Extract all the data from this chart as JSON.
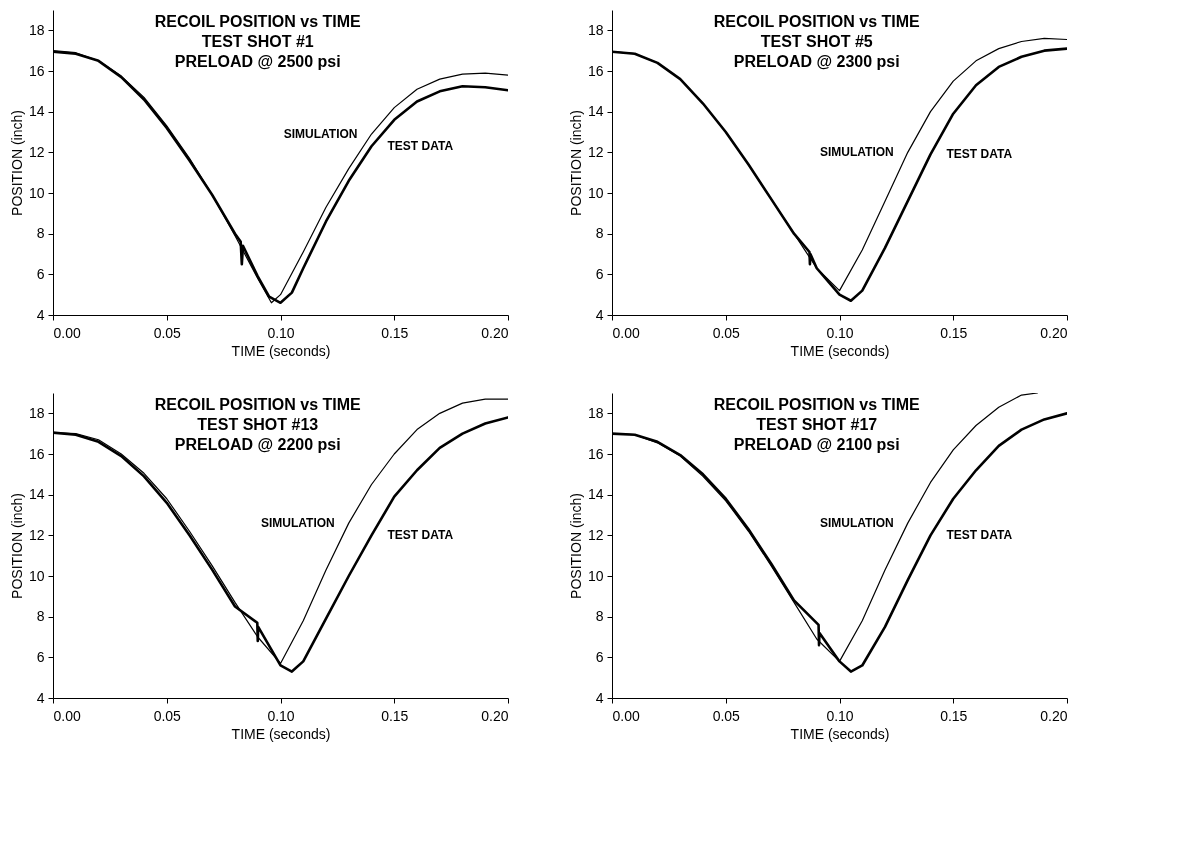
{
  "chart_data": [
    {
      "type": "line",
      "title": "RECOIL POSITION vs TIME\nTEST SHOT #1\nPRELOAD @ 2500 psi",
      "xlabel": "TIME (seconds)",
      "ylabel": "POSITION (inch)",
      "xlim": [
        0,
        0.2
      ],
      "xticks": [
        {
          "value": 0,
          "label": "0.00"
        },
        {
          "value": 0.05,
          "label": "0.05"
        },
        {
          "value": 0.1,
          "label": "0.10"
        },
        {
          "value": 0.15,
          "label": "0.15"
        },
        {
          "value": 0.2,
          "label": "0.20"
        }
      ],
      "ylim": [
        4,
        19
      ],
      "yticks": [
        4,
        6,
        8,
        10,
        12,
        14,
        16,
        18
      ],
      "grid": false,
      "series": [
        {
          "name": "SIMULATION",
          "color": "#000000",
          "x": [
            0,
            0.01,
            0.02,
            0.03,
            0.04,
            0.05,
            0.06,
            0.07,
            0.08,
            0.09,
            0.096,
            0.1,
            0.11,
            0.12,
            0.13,
            0.14,
            0.15,
            0.16,
            0.17,
            0.18,
            0.19,
            0.2
          ],
          "values": [
            17,
            16.9,
            16.5,
            15.75,
            14.7,
            13.3,
            11.7,
            9.9,
            7.9,
            5.8,
            4.6,
            5,
            7.1,
            9.3,
            11.2,
            12.9,
            14.2,
            15.1,
            15.6,
            15.85,
            15.9,
            15.8
          ]
        },
        {
          "name": "TEST DATA",
          "color": "#000000",
          "x": [
            0,
            0.01,
            0.02,
            0.03,
            0.04,
            0.05,
            0.06,
            0.07,
            0.08,
            0.0825,
            0.083,
            0.0835,
            0.09,
            0.095,
            0.1,
            0.105,
            0.11,
            0.12,
            0.13,
            0.14,
            0.15,
            0.16,
            0.17,
            0.18,
            0.19,
            0.2
          ],
          "values": [
            16.95,
            16.85,
            16.5,
            15.7,
            14.6,
            13.2,
            11.6,
            9.9,
            8,
            7.6,
            6.5,
            7.4,
            5.9,
            4.9,
            4.6,
            5.1,
            6.3,
            8.6,
            10.6,
            12.3,
            13.6,
            14.5,
            15,
            15.25,
            15.2,
            15.05
          ]
        }
      ]
    },
    {
      "type": "line",
      "title": "RECOIL POSITION vs TIME\nTEST SHOT #5\nPRELOAD @ 2300 psi",
      "xlabel": "TIME (seconds)",
      "ylabel": "POSITION (inch)",
      "xlim": [
        0,
        0.2
      ],
      "xticks": [
        {
          "value": 0,
          "label": "0.00"
        },
        {
          "value": 0.05,
          "label": "0.05"
        },
        {
          "value": 0.1,
          "label": "0.10"
        },
        {
          "value": 0.15,
          "label": "0.15"
        },
        {
          "value": 0.2,
          "label": "0.20"
        }
      ],
      "ylim": [
        4,
        19
      ],
      "yticks": [
        4,
        6,
        8,
        10,
        12,
        14,
        16,
        18
      ],
      "grid": false,
      "series": [
        {
          "name": "SIMULATION",
          "color": "#000000",
          "x": [
            0,
            0.01,
            0.02,
            0.03,
            0.04,
            0.05,
            0.06,
            0.07,
            0.08,
            0.09,
            0.1,
            0.11,
            0.12,
            0.13,
            0.14,
            0.15,
            0.16,
            0.17,
            0.18,
            0.19,
            0.2
          ],
          "values": [
            16.95,
            16.85,
            16.4,
            15.6,
            14.4,
            13,
            11.4,
            9.7,
            8,
            6.3,
            5.2,
            7.2,
            9.6,
            12,
            14,
            15.5,
            16.5,
            17.1,
            17.45,
            17.6,
            17.55
          ]
        },
        {
          "name": "TEST DATA",
          "color": "#000000",
          "x": [
            0,
            0.01,
            0.02,
            0.03,
            0.04,
            0.05,
            0.06,
            0.07,
            0.08,
            0.0868,
            0.087,
            0.0872,
            0.09,
            0.1,
            0.105,
            0.11,
            0.12,
            0.13,
            0.14,
            0.15,
            0.16,
            0.17,
            0.18,
            0.19,
            0.2
          ],
          "values": [
            16.95,
            16.85,
            16.4,
            15.6,
            14.4,
            13,
            11.4,
            9.7,
            8,
            7.1,
            6.5,
            7,
            6.3,
            5,
            4.7,
            5.2,
            7.3,
            9.6,
            11.9,
            13.9,
            15.3,
            16.2,
            16.7,
            17,
            17.1
          ]
        }
      ]
    },
    {
      "type": "line",
      "title": "RECOIL POSITION vs TIME\nTEST SHOT #13\nPRELOAD @ 2200 psi",
      "xlabel": "TIME (seconds)",
      "ylabel": "POSITION (inch)",
      "xlim": [
        0,
        0.2
      ],
      "xticks": [
        {
          "value": 0,
          "label": "0.00"
        },
        {
          "value": 0.05,
          "label": "0.05"
        },
        {
          "value": 0.1,
          "label": "0.10"
        },
        {
          "value": 0.15,
          "label": "0.15"
        },
        {
          "value": 0.2,
          "label": "0.20"
        }
      ],
      "ylim": [
        4,
        19
      ],
      "yticks": [
        4,
        6,
        8,
        10,
        12,
        14,
        16,
        18
      ],
      "grid": false,
      "series": [
        {
          "name": "SIMULATION",
          "color": "#000000",
          "x": [
            0,
            0.01,
            0.02,
            0.03,
            0.04,
            0.05,
            0.06,
            0.07,
            0.08,
            0.09,
            0.1,
            0.11,
            0.12,
            0.13,
            0.14,
            0.15,
            0.16,
            0.17,
            0.18,
            0.19,
            0.2
          ],
          "values": [
            17.05,
            17,
            16.7,
            16,
            15.05,
            13.8,
            12.2,
            10.5,
            8.7,
            7,
            5.7,
            7.8,
            10.3,
            12.6,
            14.5,
            16,
            17.2,
            18,
            18.5,
            18.7,
            18.7
          ]
        },
        {
          "name": "TEST DATA",
          "color": "#000000",
          "x": [
            0,
            0.01,
            0.02,
            0.03,
            0.04,
            0.05,
            0.06,
            0.07,
            0.08,
            0.0898,
            0.09,
            0.0902,
            0.1,
            0.105,
            0.11,
            0.12,
            0.13,
            0.14,
            0.15,
            0.16,
            0.17,
            0.18,
            0.19,
            0.2
          ],
          "values": [
            17.05,
            16.95,
            16.6,
            15.9,
            14.9,
            13.6,
            12,
            10.3,
            8.5,
            7.7,
            6.8,
            7.5,
            5.6,
            5.3,
            5.8,
            7.9,
            10,
            12,
            13.9,
            15.2,
            16.3,
            17,
            17.5,
            17.8
          ]
        }
      ]
    },
    {
      "type": "line",
      "title": "RECOIL POSITION vs TIME\nTEST SHOT #17\nPRELOAD @ 2100 psi",
      "xlabel": "TIME (seconds)",
      "ylabel": "POSITION (inch)",
      "xlim": [
        0,
        0.2
      ],
      "xticks": [
        {
          "value": 0,
          "label": "0.00"
        },
        {
          "value": 0.05,
          "label": "0.05"
        },
        {
          "value": 0.1,
          "label": "0.10"
        },
        {
          "value": 0.15,
          "label": "0.15"
        },
        {
          "value": 0.2,
          "label": "0.20"
        }
      ],
      "ylim": [
        4,
        19
      ],
      "yticks": [
        4,
        6,
        8,
        10,
        12,
        14,
        16,
        18
      ],
      "grid": false,
      "series": [
        {
          "name": "SIMULATION",
          "color": "#000000",
          "x": [
            0,
            0.01,
            0.02,
            0.03,
            0.04,
            0.05,
            0.06,
            0.07,
            0.08,
            0.09,
            0.1,
            0.11,
            0.12,
            0.13,
            0.14,
            0.15,
            0.16,
            0.17,
            0.18,
            0.187
          ],
          "values": [
            17,
            16.95,
            16.55,
            15.9,
            14.9,
            13.7,
            12.2,
            10.5,
            8.7,
            6.9,
            5.8,
            7.8,
            10.3,
            12.6,
            14.6,
            16.2,
            17.4,
            18.3,
            18.9,
            19
          ]
        },
        {
          "name": "TEST DATA",
          "color": "#000000",
          "x": [
            0,
            0.01,
            0.02,
            0.03,
            0.04,
            0.05,
            0.06,
            0.07,
            0.08,
            0.0908,
            0.091,
            0.0912,
            0.1,
            0.105,
            0.11,
            0.12,
            0.13,
            0.14,
            0.15,
            0.16,
            0.17,
            0.18,
            0.19,
            0.2
          ],
          "values": [
            17,
            16.95,
            16.6,
            15.95,
            15,
            13.8,
            12.3,
            10.6,
            8.8,
            7.6,
            6.6,
            7.2,
            5.8,
            5.3,
            5.6,
            7.5,
            9.8,
            12,
            13.8,
            15.2,
            16.4,
            17.2,
            17.7,
            18
          ]
        }
      ]
    }
  ]
}
